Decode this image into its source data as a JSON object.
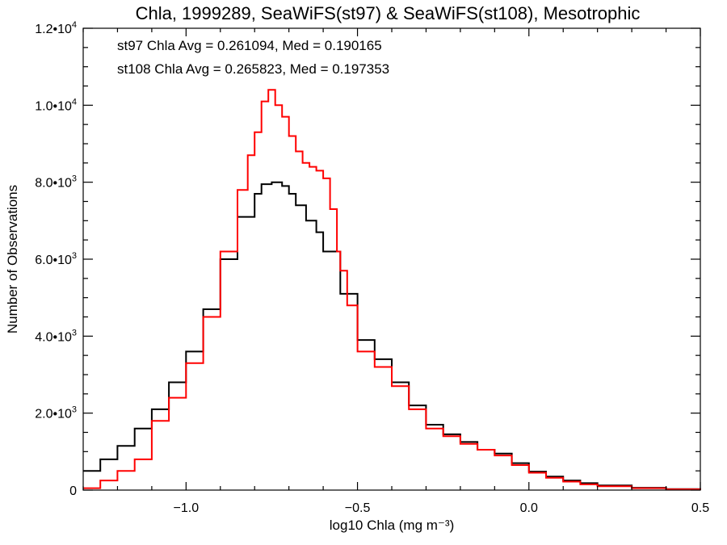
{
  "chart_data": {
    "type": "line",
    "title": "Chla, 1999289, SeaWiFS(st97) & SeaWiFS(st108), Mesotrophic",
    "xlabel": "log10 Chla (mg m⁻³)",
    "ylabel": "Number of Observations",
    "xlim": [
      -1.3,
      0.5
    ],
    "ylim": [
      0,
      12000
    ],
    "x_ticks": [
      -1.0,
      -0.5,
      0.0,
      0.5
    ],
    "x_tick_labels": [
      "−1.0",
      "−0.5",
      "0.0",
      "0.5"
    ],
    "y_ticks": [
      0,
      2000,
      4000,
      6000,
      8000,
      10000,
      12000
    ],
    "y_tick_labels": [
      {
        "mant": "0",
        "exp": ""
      },
      {
        "mant": "2.0•10",
        "exp": "3"
      },
      {
        "mant": "4.0•10",
        "exp": "3"
      },
      {
        "mant": "6.0•10",
        "exp": "3"
      },
      {
        "mant": "8.0•10",
        "exp": "3"
      },
      {
        "mant": "1.0•10",
        "exp": "4"
      },
      {
        "mant": "1.2•10",
        "exp": "4"
      }
    ],
    "annotations": [
      {
        "text": "st97 Chla Avg = 0.261094, Med = 0.190165",
        "color": "#000000"
      },
      {
        "text": "st108 Chla Avg = 0.265823, Med = 0.197353",
        "color": "#ff0000"
      }
    ],
    "series": [
      {
        "color": "#000000",
        "x": [
          -1.3,
          -1.25,
          -1.2,
          -1.15,
          -1.1,
          -1.05,
          -1.0,
          -0.95,
          -0.9,
          -0.85,
          -0.8,
          -0.78,
          -0.75,
          -0.72,
          -0.7,
          -0.68,
          -0.65,
          -0.62,
          -0.6,
          -0.55,
          -0.5,
          -0.45,
          -0.4,
          -0.35,
          -0.3,
          -0.25,
          -0.2,
          -0.15,
          -0.1,
          -0.05,
          0.0,
          0.05,
          0.1,
          0.15,
          0.2,
          0.3,
          0.4,
          0.5
        ],
        "y": [
          500,
          800,
          1150,
          1600,
          2100,
          2800,
          3600,
          4700,
          6000,
          7100,
          7700,
          7950,
          8000,
          7900,
          7700,
          7400,
          7000,
          6700,
          6200,
          5100,
          3900,
          3400,
          2800,
          2200,
          1700,
          1450,
          1250,
          1050,
          950,
          700,
          480,
          350,
          250,
          180,
          120,
          60,
          25,
          5
        ]
      },
      {
        "color": "#ff0000",
        "x": [
          -1.3,
          -1.25,
          -1.2,
          -1.15,
          -1.1,
          -1.05,
          -1.0,
          -0.95,
          -0.9,
          -0.85,
          -0.82,
          -0.8,
          -0.78,
          -0.76,
          -0.74,
          -0.72,
          -0.7,
          -0.68,
          -0.66,
          -0.64,
          -0.62,
          -0.6,
          -0.58,
          -0.56,
          -0.55,
          -0.53,
          -0.5,
          -0.45,
          -0.4,
          -0.35,
          -0.3,
          -0.25,
          -0.2,
          -0.15,
          -0.1,
          -0.05,
          0.0,
          0.05,
          0.1,
          0.15,
          0.2,
          0.3,
          0.4,
          0.5
        ],
        "y": [
          50,
          250,
          500,
          800,
          1800,
          2400,
          3300,
          4500,
          6200,
          7800,
          8700,
          9300,
          10100,
          10400,
          10000,
          9700,
          9200,
          8800,
          8500,
          8400,
          8300,
          8100,
          7300,
          6200,
          5700,
          4800,
          3600,
          3200,
          2700,
          2100,
          1600,
          1400,
          1200,
          1050,
          900,
          650,
          450,
          320,
          220,
          150,
          100,
          50,
          20,
          5
        ]
      }
    ]
  }
}
